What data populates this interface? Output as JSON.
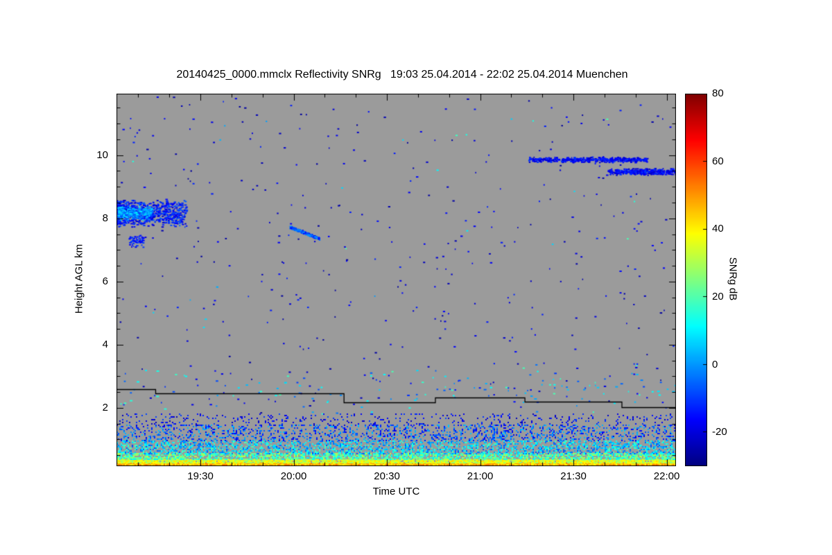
{
  "chart_data": {
    "type": "heatmap",
    "title": "20140425_0000.mmclx Reflectivity SNRg   19:03 25.04.2014 - 22:02 25.04.2014 Muenchen",
    "xlabel": "Time UTC",
    "ylabel": "Height AGL km",
    "x_range_hours": [
      19.05,
      22.05
    ],
    "y_range_km": [
      0.15,
      11.95
    ],
    "x_ticks": [
      {
        "label": "19:30",
        "hour": 19.5
      },
      {
        "label": "20:00",
        "hour": 20.0
      },
      {
        "label": "20:30",
        "hour": 20.5
      },
      {
        "label": "21:00",
        "hour": 21.0
      },
      {
        "label": "21:30",
        "hour": 21.5
      },
      {
        "label": "22:00",
        "hour": 22.0
      }
    ],
    "y_ticks": [
      {
        "label": "2",
        "km": 2
      },
      {
        "label": "4",
        "km": 4
      },
      {
        "label": "6",
        "km": 6
      },
      {
        "label": "8",
        "km": 8
      },
      {
        "label": "10",
        "km": 10
      }
    ],
    "background_color": "#9b9b9b",
    "grid": false,
    "legend_position": "none",
    "colorbar": {
      "label": "SNRg dB",
      "min": -30,
      "max": 80,
      "ticks": [
        {
          "label": "80",
          "value": 80
        },
        {
          "label": "60",
          "value": 60
        },
        {
          "label": "40",
          "value": 40
        },
        {
          "label": "20",
          "value": 20
        },
        {
          "label": "0",
          "value": 0
        },
        {
          "label": "-20",
          "value": -20
        }
      ]
    },
    "features": {
      "noise_speckle": {
        "count": 430,
        "h_range": [
          1.8,
          11.9
        ],
        "snr_range": [
          -27,
          -12
        ]
      },
      "cloud_patches": [
        {
          "name": "altocumulus-patch-19h",
          "t": [
            19.05,
            19.43
          ],
          "h": [
            7.7,
            8.62
          ],
          "count": 900,
          "snr": [
            -22,
            -6
          ],
          "bias": 1.6
        },
        {
          "name": "altocumulus-patch-19h-core",
          "t": [
            19.06,
            19.24
          ],
          "h": [
            7.95,
            8.4
          ],
          "count": 320,
          "snr": [
            -10,
            10
          ],
          "bias": 1.2
        },
        {
          "name": "fall-streak-below-patch",
          "t": [
            19.12,
            19.2
          ],
          "h": [
            7.05,
            7.5
          ],
          "count": 50,
          "snr": [
            -18,
            -8
          ]
        },
        {
          "name": "descending-streak-20h",
          "shape": "line",
          "t": [
            19.98,
            20.14
          ],
          "h": [
            7.72,
            7.35
          ],
          "count": 170,
          "snr": [
            -16,
            2
          ]
        },
        {
          "name": "high-cloud-band-a-9.85km",
          "t": [
            21.26,
            21.9
          ],
          "h": [
            9.76,
            9.94
          ],
          "count": 430,
          "snr": [
            -23,
            -10
          ]
        },
        {
          "name": "high-cloud-band-b-9.5km",
          "t": [
            21.68,
            22.05
          ],
          "h": [
            9.36,
            9.58
          ],
          "count": 330,
          "snr": [
            -23,
            -10
          ]
        },
        {
          "name": "mid-level-sparse-speckle",
          "t": [
            19.05,
            22.05
          ],
          "h": [
            1.8,
            3.4
          ],
          "count": 140,
          "snr": [
            -12,
            20
          ]
        }
      ],
      "surface_layers": [
        {
          "h": [
            0.15,
            0.24
          ],
          "density": 1.0,
          "snr": [
            38,
            54
          ]
        },
        {
          "h": [
            0.24,
            0.36
          ],
          "density": 0.95,
          "snr": [
            26,
            44
          ]
        },
        {
          "h": [
            0.36,
            0.55
          ],
          "density": 0.7,
          "snr": [
            8,
            32
          ]
        },
        {
          "h": [
            0.55,
            0.95
          ],
          "density": 0.45,
          "snr": [
            -8,
            20
          ]
        },
        {
          "h": [
            0.95,
            1.45
          ],
          "density": 0.28,
          "snr": [
            -20,
            6
          ]
        },
        {
          "h": [
            1.45,
            1.8
          ],
          "density": 0.1,
          "snr": [
            -24,
            -8
          ]
        }
      ],
      "threshold_line": {
        "color": "#000000",
        "segments": [
          [
            19.05,
            19.26,
            2.6
          ],
          [
            19.26,
            20.27,
            2.45
          ],
          [
            20.27,
            20.76,
            2.18
          ],
          [
            20.76,
            21.24,
            2.32
          ],
          [
            21.24,
            21.76,
            2.2
          ],
          [
            21.76,
            22.05,
            2.02
          ]
        ]
      }
    }
  }
}
